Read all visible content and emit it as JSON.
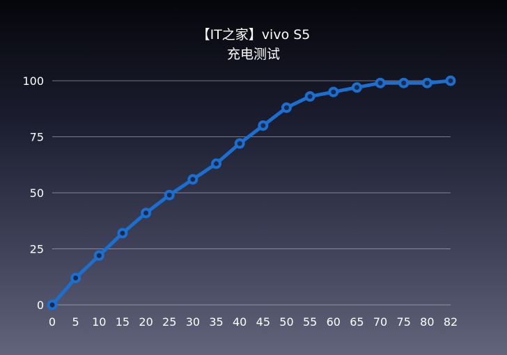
{
  "chart_data": {
    "type": "line",
    "title": "【IT之家】vivo S5",
    "subtitle": "充电测试",
    "xlabel": "",
    "ylabel": "",
    "categories": [
      "0",
      "5",
      "10",
      "15",
      "20",
      "25",
      "30",
      "35",
      "40",
      "45",
      "50",
      "55",
      "60",
      "65",
      "70",
      "75",
      "80",
      "82"
    ],
    "series": [
      {
        "name": "充电",
        "values": [
          0,
          12,
          22,
          32,
          41,
          49,
          56,
          63,
          72,
          80,
          88,
          93,
          95,
          97,
          99,
          99,
          99,
          100
        ]
      }
    ],
    "ylim": [
      0,
      100
    ],
    "yticks": [
      0,
      25,
      50,
      75,
      100
    ],
    "grid": true,
    "line_color": "#1a6fd0"
  }
}
